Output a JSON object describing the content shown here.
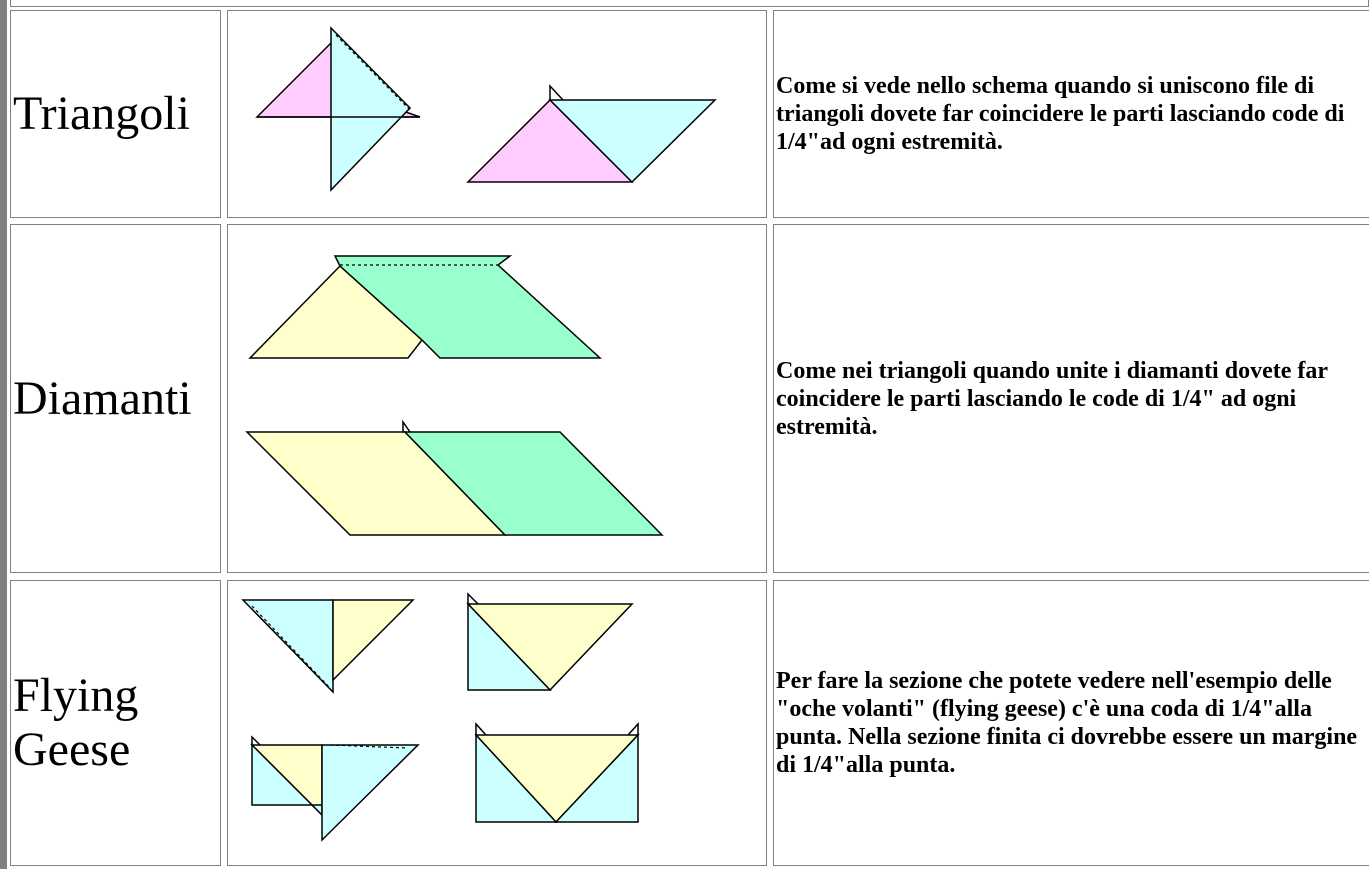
{
  "table": {
    "rows": [
      {
        "label": "Triangoli",
        "description": "Come si vede nello schema quando si uniscono file di triangoli dovete far coincidere le parti lasciando code di 1/4\"ad ogni estremità."
      },
      {
        "label": "Diamanti",
        "description": "Come nei triangoli quando unite i diamanti dovete far coincidere le parti lasciando le code di 1/4\" ad ogni estremità."
      },
      {
        "label": "Flying Geese",
        "description": "Per fare la sezione che potete vedere nell'esempio delle \"oche volanti\" (flying geese)  c'è una coda di 1/4\"alla punta. Nella sezione finita ci dovrebbe essere un margine di 1/4\"alla punta."
      }
    ]
  }
}
